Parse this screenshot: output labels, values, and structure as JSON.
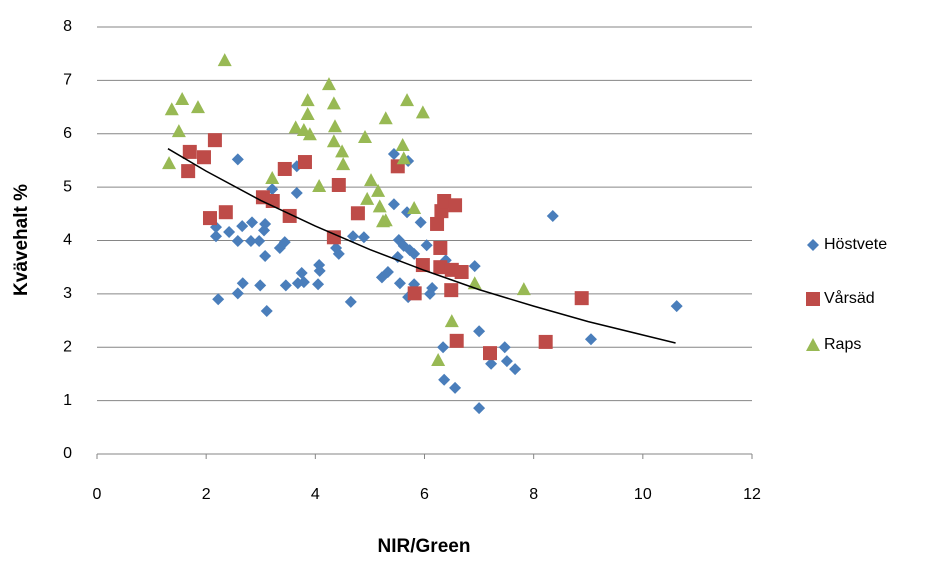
{
  "chart_data": {
    "type": "scatter",
    "xlabel": "NIR/Green",
    "ylabel": "Kvävehalt %",
    "xlim": [
      0,
      12
    ],
    "xticks": [
      0,
      2,
      4,
      6,
      8,
      10,
      12
    ],
    "ylim": [
      0,
      8
    ],
    "yticks": [
      0,
      1,
      2,
      3,
      4,
      5,
      6,
      7,
      8
    ],
    "grid": true,
    "legend": "right",
    "series": [
      {
        "name": "Höstvete",
        "color": "#4a7ebb",
        "marker": "diamond",
        "x": [
          2.58,
          2.18,
          2.18,
          2.42,
          2.22,
          2.66,
          2.58,
          2.84,
          2.82,
          2.97,
          3.06,
          3.08,
          3.08,
          2.67,
          2.58,
          2.99,
          3.11,
          3.21,
          3.35,
          3.44,
          3.46,
          3.66,
          3.66,
          3.75,
          3.68,
          3.79,
          4.07,
          4.08,
          4.05,
          4.36,
          4.38,
          4.43,
          4.65,
          4.69,
          4.76,
          4.89,
          5.22,
          5.33,
          5.44,
          5.44,
          5.51,
          5.53,
          5.55,
          5.62,
          5.68,
          5.7,
          5.7,
          5.73,
          5.81,
          5.81,
          5.93,
          6.04,
          6.1,
          6.14,
          6.34,
          6.36,
          6.39,
          6.56,
          6.92,
          7.0,
          7.0,
          7.22,
          7.47,
          7.51,
          7.66,
          8.35,
          9.05,
          10.62
        ],
        "values": [
          5.52,
          4.25,
          4.08,
          4.16,
          2.9,
          4.27,
          3.99,
          4.34,
          3.99,
          3.99,
          4.19,
          4.31,
          3.71,
          3.2,
          3.01,
          3.16,
          2.68,
          4.96,
          3.86,
          3.97,
          3.16,
          5.39,
          4.89,
          3.39,
          3.2,
          3.22,
          3.54,
          3.43,
          3.18,
          4.01,
          3.86,
          3.75,
          2.85,
          4.08,
          4.51,
          4.06,
          3.31,
          3.41,
          5.62,
          4.68,
          3.69,
          4.01,
          3.2,
          3.9,
          4.53,
          5.49,
          2.94,
          3.82,
          3.75,
          3.18,
          4.34,
          3.91,
          3.0,
          3.11,
          2.0,
          1.39,
          3.63,
          1.24,
          3.52,
          0.86,
          2.3,
          1.69,
          2.0,
          1.74,
          1.59,
          4.46,
          2.15,
          2.77
        ]
      },
      {
        "name": "Vårsäd",
        "color": "#be4b48",
        "marker": "square",
        "x": [
          1.7,
          1.67,
          1.96,
          2.16,
          2.07,
          2.36,
          3.04,
          3.22,
          3.44,
          3.53,
          3.81,
          4.34,
          4.43,
          4.78,
          5.51,
          5.82,
          5.97,
          6.23,
          6.29,
          6.31,
          6.36,
          6.29,
          6.5,
          6.56,
          6.49,
          6.68,
          6.59,
          7.2,
          8.22,
          8.88
        ],
        "values": [
          5.66,
          5.3,
          5.56,
          5.88,
          4.42,
          4.53,
          4.81,
          4.74,
          5.34,
          4.46,
          5.47,
          4.06,
          5.04,
          4.51,
          5.39,
          3.01,
          3.54,
          4.31,
          3.86,
          4.55,
          4.74,
          3.5,
          3.45,
          4.66,
          3.07,
          3.41,
          2.12,
          1.89,
          2.1,
          2.92
        ]
      },
      {
        "name": "Raps",
        "color": "#98b954",
        "marker": "triangle",
        "x": [
          1.32,
          1.37,
          1.5,
          1.56,
          1.85,
          2.34,
          3.21,
          3.64,
          3.79,
          3.86,
          3.86,
          3.9,
          4.07,
          4.25,
          4.34,
          4.36,
          4.34,
          4.49,
          4.51,
          4.91,
          4.95,
          5.02,
          5.15,
          5.18,
          5.24,
          5.29,
          5.29,
          5.6,
          5.62,
          5.68,
          5.81,
          5.97,
          6.25,
          6.5,
          6.92,
          7.82
        ],
        "values": [
          5.45,
          6.46,
          6.05,
          6.65,
          6.5,
          7.38,
          5.17,
          6.12,
          6.07,
          6.63,
          6.37,
          5.99,
          5.02,
          6.93,
          6.57,
          6.14,
          5.86,
          5.67,
          5.43,
          5.94,
          4.78,
          5.13,
          4.93,
          4.64,
          4.36,
          6.29,
          4.38,
          5.79,
          5.54,
          6.63,
          4.61,
          6.4,
          1.76,
          2.49,
          3.2,
          3.09
        ]
      }
    ],
    "trendline": {
      "color": "#000000",
      "x": [
        1.3,
        2,
        3,
        4,
        5,
        6,
        7,
        8,
        9,
        10,
        10.6
      ],
      "values": [
        5.72,
        5.3,
        4.75,
        4.27,
        3.83,
        3.44,
        3.08,
        2.77,
        2.48,
        2.23,
        2.08
      ]
    }
  }
}
